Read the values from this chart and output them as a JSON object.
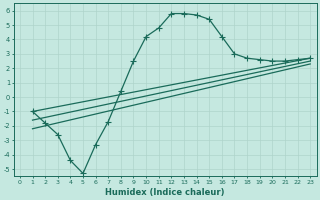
{
  "xlabel": "Humidex (Indice chaleur)",
  "bg_color": "#c5e8e0",
  "line_color": "#1a6b5a",
  "grid_color": "#afd4cb",
  "xlim": [
    -0.5,
    23.5
  ],
  "ylim": [
    -5.5,
    6.5
  ],
  "xticks": [
    0,
    1,
    2,
    3,
    4,
    5,
    6,
    7,
    8,
    9,
    10,
    11,
    12,
    13,
    14,
    15,
    16,
    17,
    18,
    19,
    20,
    21,
    22,
    23
  ],
  "yticks": [
    -5,
    -4,
    -3,
    -2,
    -1,
    0,
    1,
    2,
    3,
    4,
    5,
    6
  ],
  "curve1_x": [
    1,
    2,
    3,
    4,
    5,
    6,
    7,
    8,
    9,
    10,
    11,
    12,
    13,
    14,
    15,
    16,
    17,
    18,
    19,
    20,
    21,
    22,
    23
  ],
  "curve1_y": [
    -1.0,
    -1.8,
    -2.6,
    -4.4,
    -5.3,
    -3.3,
    -1.7,
    0.4,
    2.5,
    4.2,
    4.8,
    5.8,
    5.8,
    5.7,
    5.4,
    4.2,
    3.0,
    2.7,
    2.6,
    2.5,
    2.5,
    2.6,
    2.7
  ],
  "line2_x": [
    1,
    23
  ],
  "line2_y": [
    -1.0,
    2.7
  ],
  "line3_x": [
    1,
    23
  ],
  "line3_y": [
    -1.6,
    2.5
  ],
  "line4_x": [
    1,
    23
  ],
  "line4_y": [
    -2.2,
    2.3
  ],
  "markersize": 2.5,
  "linewidth": 0.9
}
